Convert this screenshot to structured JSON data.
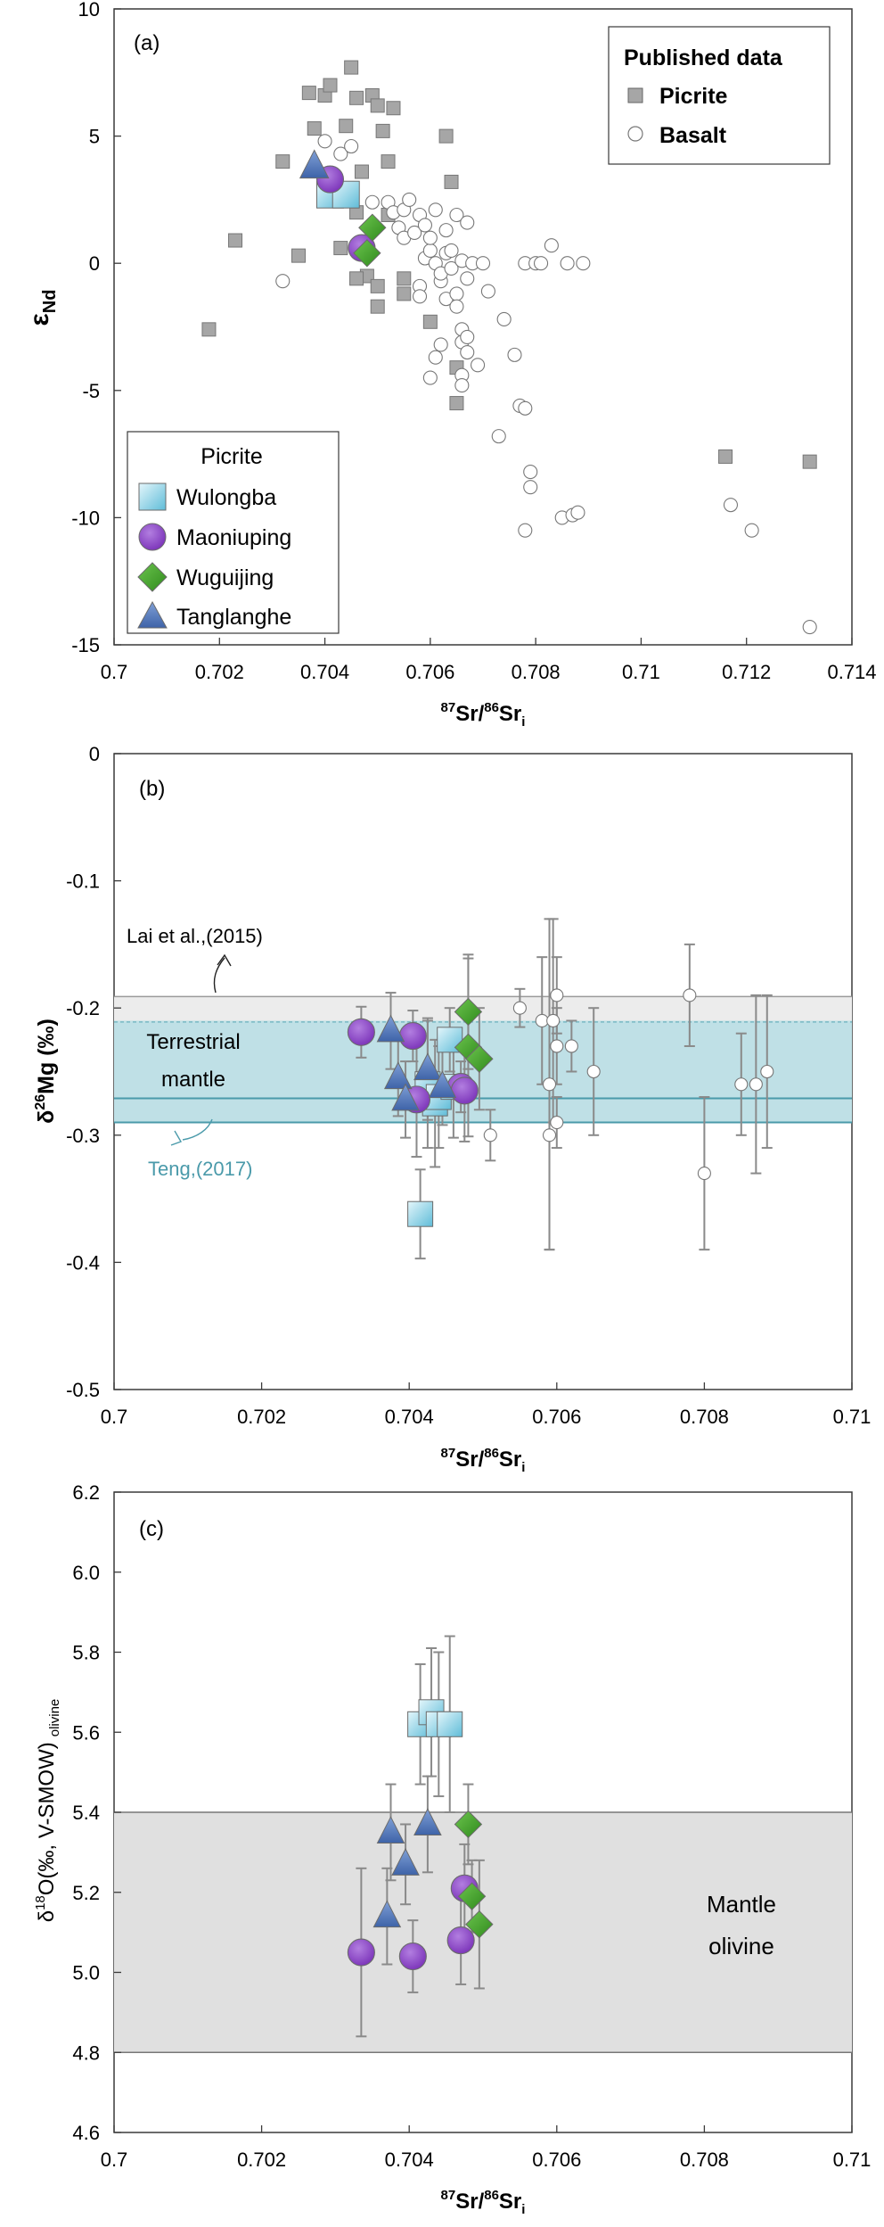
{
  "figure": {
    "panel_labels": [
      "(a)",
      "(b)",
      "(c)"
    ]
  },
  "chart_data": [
    {
      "id": "a",
      "type": "scatter",
      "panel_label": "(a)",
      "xlabel": "87Sr/86Sri",
      "xlabel_parts": {
        "sup1": "87",
        "main1": "Sr/",
        "sup2": "86",
        "main2": "Sr",
        "sub": "i"
      },
      "ylabel": "εNd",
      "ylabel_parts": {
        "main": "ε",
        "sub": "Nd"
      },
      "xlim": [
        0.7,
        0.714
      ],
      "ylim": [
        -15,
        10
      ],
      "xticks": [
        "0.7",
        "0.702",
        "0.704",
        "0.706",
        "0.708",
        "0.71",
        "0.712",
        "0.714"
      ],
      "xtick_values": [
        0.7,
        0.702,
        0.704,
        0.706,
        0.708,
        0.71,
        0.712,
        0.714
      ],
      "yticks": [
        "-15",
        "-10",
        "-5",
        "0",
        "5",
        "10"
      ],
      "ytick_values": [
        -15,
        -10,
        -5,
        0,
        5,
        10
      ],
      "legend_published": {
        "title": "Published data",
        "items": [
          "Picrite",
          "Basalt"
        ],
        "position": "top-right"
      },
      "legend_samples": {
        "title": "Picrite",
        "items": [
          "Wulongba",
          "Maoniuping",
          "Wuguijing",
          "Tanglanghe"
        ],
        "position": "bottom-left"
      },
      "series": [
        {
          "name": "Picrite",
          "marker": "square",
          "color": "#a6a6a6",
          "points": [
            [
              0.7018,
              -2.6
            ],
            [
              0.7023,
              0.9
            ],
            [
              0.7032,
              4.0
            ],
            [
              0.7035,
              0.3
            ],
            [
              0.7037,
              6.7
            ],
            [
              0.7038,
              5.3
            ],
            [
              0.704,
              6.6
            ],
            [
              0.7041,
              7.0
            ],
            [
              0.7044,
              5.4
            ],
            [
              0.7045,
              7.7
            ],
            [
              0.7046,
              6.5
            ],
            [
              0.7047,
              3.6
            ],
            [
              0.7048,
              -0.5
            ],
            [
              0.7049,
              6.6
            ],
            [
              0.705,
              6.2
            ],
            [
              0.7051,
              5.2
            ],
            [
              0.7052,
              4.0
            ],
            [
              0.7053,
              6.1
            ],
            [
              0.705,
              -0.9
            ],
            [
              0.705,
              -1.7
            ],
            [
              0.7055,
              -0.6
            ],
            [
              0.7055,
              -1.2
            ],
            [
              0.7043,
              0.6
            ],
            [
              0.7046,
              2.0
            ],
            [
              0.7046,
              -0.6
            ],
            [
              0.7052,
              1.9
            ],
            [
              0.706,
              -2.3
            ],
            [
              0.7063,
              5.0
            ],
            [
              0.7064,
              3.2
            ],
            [
              0.7065,
              -4.1
            ],
            [
              0.7065,
              -5.5
            ],
            [
              0.7116,
              -7.6
            ],
            [
              0.7132,
              -7.8
            ]
          ]
        },
        {
          "name": "Basalt",
          "marker": "circle",
          "color": "#ffffff",
          "points": [
            [
              0.7032,
              -0.7
            ],
            [
              0.704,
              4.8
            ],
            [
              0.7043,
              4.3
            ],
            [
              0.7045,
              4.6
            ],
            [
              0.7049,
              2.4
            ],
            [
              0.7052,
              2.4
            ],
            [
              0.7053,
              2.0
            ],
            [
              0.7054,
              1.4
            ],
            [
              0.7055,
              1.0
            ],
            [
              0.7055,
              2.1
            ],
            [
              0.7056,
              2.5
            ],
            [
              0.7057,
              1.2
            ],
            [
              0.7058,
              1.9
            ],
            [
              0.7059,
              0.2
            ],
            [
              0.7059,
              1.5
            ],
            [
              0.706,
              0.5
            ],
            [
              0.706,
              1.0
            ],
            [
              0.7061,
              2.1
            ],
            [
              0.7061,
              0.0
            ],
            [
              0.7062,
              -0.7
            ],
            [
              0.7062,
              -0.4
            ],
            [
              0.7063,
              -1.4
            ],
            [
              0.7063,
              0.4
            ],
            [
              0.7063,
              1.3
            ],
            [
              0.7064,
              -0.2
            ],
            [
              0.7064,
              0.5
            ],
            [
              0.7065,
              -1.2
            ],
            [
              0.7065,
              1.9
            ],
            [
              0.7065,
              -1.7
            ],
            [
              0.7066,
              -2.6
            ],
            [
              0.7066,
              -3.1
            ],
            [
              0.7066,
              0.1
            ],
            [
              0.7067,
              -0.6
            ],
            [
              0.7067,
              1.6
            ],
            [
              0.7067,
              -2.9
            ],
            [
              0.7067,
              -3.5
            ],
            [
              0.7068,
              0.0
            ],
            [
              0.7069,
              -4.0
            ],
            [
              0.707,
              0.0
            ],
            [
              0.7071,
              -1.1
            ],
            [
              0.7062,
              -3.2
            ],
            [
              0.7061,
              -3.7
            ],
            [
              0.706,
              -4.5
            ],
            [
              0.7066,
              -4.4
            ],
            [
              0.7066,
              -4.8
            ],
            [
              0.7058,
              -0.9
            ],
            [
              0.7058,
              -1.3
            ],
            [
              0.7073,
              -6.8
            ],
            [
              0.7074,
              -2.2
            ],
            [
              0.7076,
              -3.6
            ],
            [
              0.7077,
              -5.6
            ],
            [
              0.7078,
              -5.7
            ],
            [
              0.7078,
              -10.5
            ],
            [
              0.7079,
              -8.2
            ],
            [
              0.7079,
              -8.8
            ],
            [
              0.7078,
              0.0
            ],
            [
              0.708,
              0.0
            ],
            [
              0.7081,
              0.0
            ],
            [
              0.7083,
              0.7
            ],
            [
              0.7085,
              -10.0
            ],
            [
              0.7087,
              -9.9
            ],
            [
              0.7088,
              -9.8
            ],
            [
              0.7086,
              0.0
            ],
            [
              0.7089,
              0.0
            ],
            [
              0.7117,
              -9.5
            ],
            [
              0.7121,
              -10.5
            ],
            [
              0.7132,
              -14.3
            ]
          ]
        },
        {
          "name": "Wulongba",
          "marker": "square",
          "color": "#9fd9ea",
          "points": [
            [
              0.7041,
              2.7
            ],
            [
              0.7044,
              2.7
            ]
          ]
        },
        {
          "name": "Maoniuping",
          "marker": "circle",
          "color": "#8b46c4",
          "points": [
            [
              0.7041,
              3.3
            ],
            [
              0.7047,
              0.6
            ]
          ]
        },
        {
          "name": "Wuguijing",
          "marker": "diamond",
          "color": "#41a62a",
          "points": [
            [
              0.7049,
              1.4
            ],
            [
              0.7048,
              0.4
            ]
          ]
        },
        {
          "name": "Tanglanghe",
          "marker": "triangle",
          "color": "#4c72b5",
          "points": [
            [
              0.7038,
              3.8
            ]
          ]
        }
      ]
    },
    {
      "id": "b",
      "type": "scatter",
      "panel_label": "(b)",
      "xlabel": "87Sr/86Sri",
      "xlabel_parts": {
        "sup1": "87",
        "main1": "Sr/",
        "sup2": "86",
        "main2": "Sr",
        "sub": "i"
      },
      "ylabel": "δ26Mg (‰)",
      "ylabel_parts": {
        "pre": "δ",
        "sup": "26",
        "main": "Mg (‰)"
      },
      "xlim": [
        0.7,
        0.71
      ],
      "ylim": [
        -0.5,
        0
      ],
      "xticks": [
        "0.7",
        "0.702",
        "0.704",
        "0.706",
        "0.708",
        "0.71"
      ],
      "xtick_values": [
        0.7,
        0.702,
        0.704,
        0.706,
        0.708,
        0.71
      ],
      "yticks": [
        "-0.5",
        "-0.4",
        "-0.3",
        "-0.2",
        "-0.1",
        "0"
      ],
      "ytick_values": [
        -0.5,
        -0.4,
        -0.3,
        -0.2,
        -0.1,
        0
      ],
      "bands": [
        {
          "name": "Lai et al. band",
          "y0": -0.211,
          "y1": -0.191,
          "color": "#ececec"
        },
        {
          "name": "Terrestrial mantle",
          "y0": -0.29,
          "y1": -0.21,
          "color": "#bfe0e6"
        }
      ],
      "reference_lines": [
        -0.191,
        -0.211,
        -0.271,
        -0.29
      ],
      "annotations": {
        "lai": "Lai et al.,(2015)",
        "mantle_line1": "Terrestrial",
        "mantle_line2": "mantle",
        "teng": "Teng,(2017)"
      },
      "series": [
        {
          "name": "Basalt",
          "marker": "circle",
          "color": "#ffffff",
          "points": [
            [
              0.7051,
              -0.3,
              0.02
            ],
            [
              0.7055,
              -0.2,
              0.015
            ],
            [
              0.7058,
              -0.21,
              0.05
            ],
            [
              0.7059,
              -0.26,
              0.13
            ],
            [
              0.7059,
              -0.3,
              0.09
            ],
            [
              0.70595,
              -0.21,
              0.08
            ],
            [
              0.706,
              -0.23,
              0.03
            ],
            [
              0.706,
              -0.29,
              0.02
            ],
            [
              0.706,
              -0.19,
              0.03
            ],
            [
              0.7062,
              -0.23,
              0.02
            ],
            [
              0.7065,
              -0.25,
              0.05
            ],
            [
              0.7078,
              -0.19,
              0.04
            ],
            [
              0.708,
              -0.33,
              0.06
            ],
            [
              0.7085,
              -0.26,
              0.04
            ],
            [
              0.7087,
              -0.26,
              0.07
            ],
            [
              0.70885,
              -0.25,
              0.06
            ]
          ]
        },
        {
          "name": "Wulongba",
          "marker": "square",
          "color": "#9fd9ea",
          "points": [
            [
              0.70415,
              -0.362,
              0.035
            ],
            [
              0.70425,
              -0.26,
              0.05
            ],
            [
              0.70435,
              -0.275,
              0.05
            ],
            [
              0.7044,
              -0.27,
              0.04
            ],
            [
              0.70455,
              -0.225,
              0.025
            ],
            [
              0.7046,
              -0.262,
              0.04
            ]
          ]
        },
        {
          "name": "Maoniuping",
          "marker": "circle",
          "color": "#8b46c4",
          "points": [
            [
              0.70335,
              -0.219,
              0.02
            ],
            [
              0.70405,
              -0.222,
              0.02
            ],
            [
              0.7041,
              -0.272,
              0.045
            ],
            [
              0.7047,
              -0.262,
              0.02
            ],
            [
              0.70475,
              -0.265,
              0.04
            ]
          ]
        },
        {
          "name": "Wuguijing",
          "marker": "diamond",
          "color": "#41a62a",
          "points": [
            [
              0.7048,
              -0.203,
              0.045
            ],
            [
              0.7048,
              -0.231,
              0.07
            ],
            [
              0.70495,
              -0.24,
              0.04
            ]
          ]
        },
        {
          "name": "Tanglanghe",
          "marker": "triangle",
          "color": "#4c72b5",
          "points": [
            [
              0.70375,
              -0.218,
              0.03
            ],
            [
              0.70385,
              -0.255,
              0.03
            ],
            [
              0.70395,
              -0.272,
              0.03
            ],
            [
              0.70425,
              -0.248,
              0.04
            ],
            [
              0.70445,
              -0.262,
              0.03
            ]
          ]
        }
      ]
    },
    {
      "id": "c",
      "type": "scatter",
      "panel_label": "(c)",
      "xlabel": "87Sr/86Sri",
      "xlabel_parts": {
        "sup1": "87",
        "main1": "Sr/",
        "sup2": "86",
        "main2": "Sr",
        "sub": "i"
      },
      "ylabel": "δ18O(‰, V-SMOW) olivine",
      "ylabel_parts": {
        "pre": "δ",
        "sup": "18",
        "main": "O(‰, V-SMOW)",
        "sub": "olivine"
      },
      "xlim": [
        0.7,
        0.71
      ],
      "ylim": [
        4.6,
        6.2
      ],
      "xticks": [
        "0.7",
        "0.702",
        "0.704",
        "0.706",
        "0.708",
        "0.71"
      ],
      "xtick_values": [
        0.7,
        0.702,
        0.704,
        0.706,
        0.708,
        0.71
      ],
      "yticks": [
        "4.6",
        "4.8",
        "5.0",
        "5.2",
        "5.4",
        "5.6",
        "5.8",
        "6.0",
        "6.2"
      ],
      "ytick_values": [
        4.6,
        4.8,
        5.0,
        5.2,
        5.4,
        5.6,
        5.8,
        6.0,
        6.2
      ],
      "bands": [
        {
          "name": "Mantle olivine",
          "y0": 4.8,
          "y1": 5.4,
          "color": "#e0e0e0"
        }
      ],
      "annotations": {
        "band_line1": "Mantle",
        "band_line2": "olivine"
      },
      "series": [
        {
          "name": "Wulongba",
          "marker": "square",
          "color": "#9fd9ea",
          "points": [
            [
              0.70415,
              5.62,
              0.15
            ],
            [
              0.7043,
              5.65,
              0.16
            ],
            [
              0.7044,
              5.62,
              0.18
            ],
            [
              0.70455,
              5.62,
              0.22
            ]
          ]
        },
        {
          "name": "Maoniuping",
          "marker": "circle",
          "color": "#8b46c4",
          "points": [
            [
              0.70335,
              5.05,
              0.21
            ],
            [
              0.70405,
              5.04,
              0.09
            ],
            [
              0.7047,
              5.08,
              0.11
            ],
            [
              0.70475,
              5.21,
              0.11
            ]
          ]
        },
        {
          "name": "Wuguijing",
          "marker": "diamond",
          "color": "#41a62a",
          "points": [
            [
              0.7048,
              5.37,
              0.1
            ],
            [
              0.70485,
              5.19,
              0.09
            ],
            [
              0.70495,
              5.12,
              0.16
            ]
          ]
        },
        {
          "name": "Tanglanghe",
          "marker": "triangle",
          "color": "#4c72b5",
          "points": [
            [
              0.7037,
              5.14,
              0.12
            ],
            [
              0.70375,
              5.35,
              0.12
            ],
            [
              0.70395,
              5.27,
              0.1
            ],
            [
              0.70425,
              5.37,
              0.12
            ]
          ]
        }
      ]
    }
  ]
}
